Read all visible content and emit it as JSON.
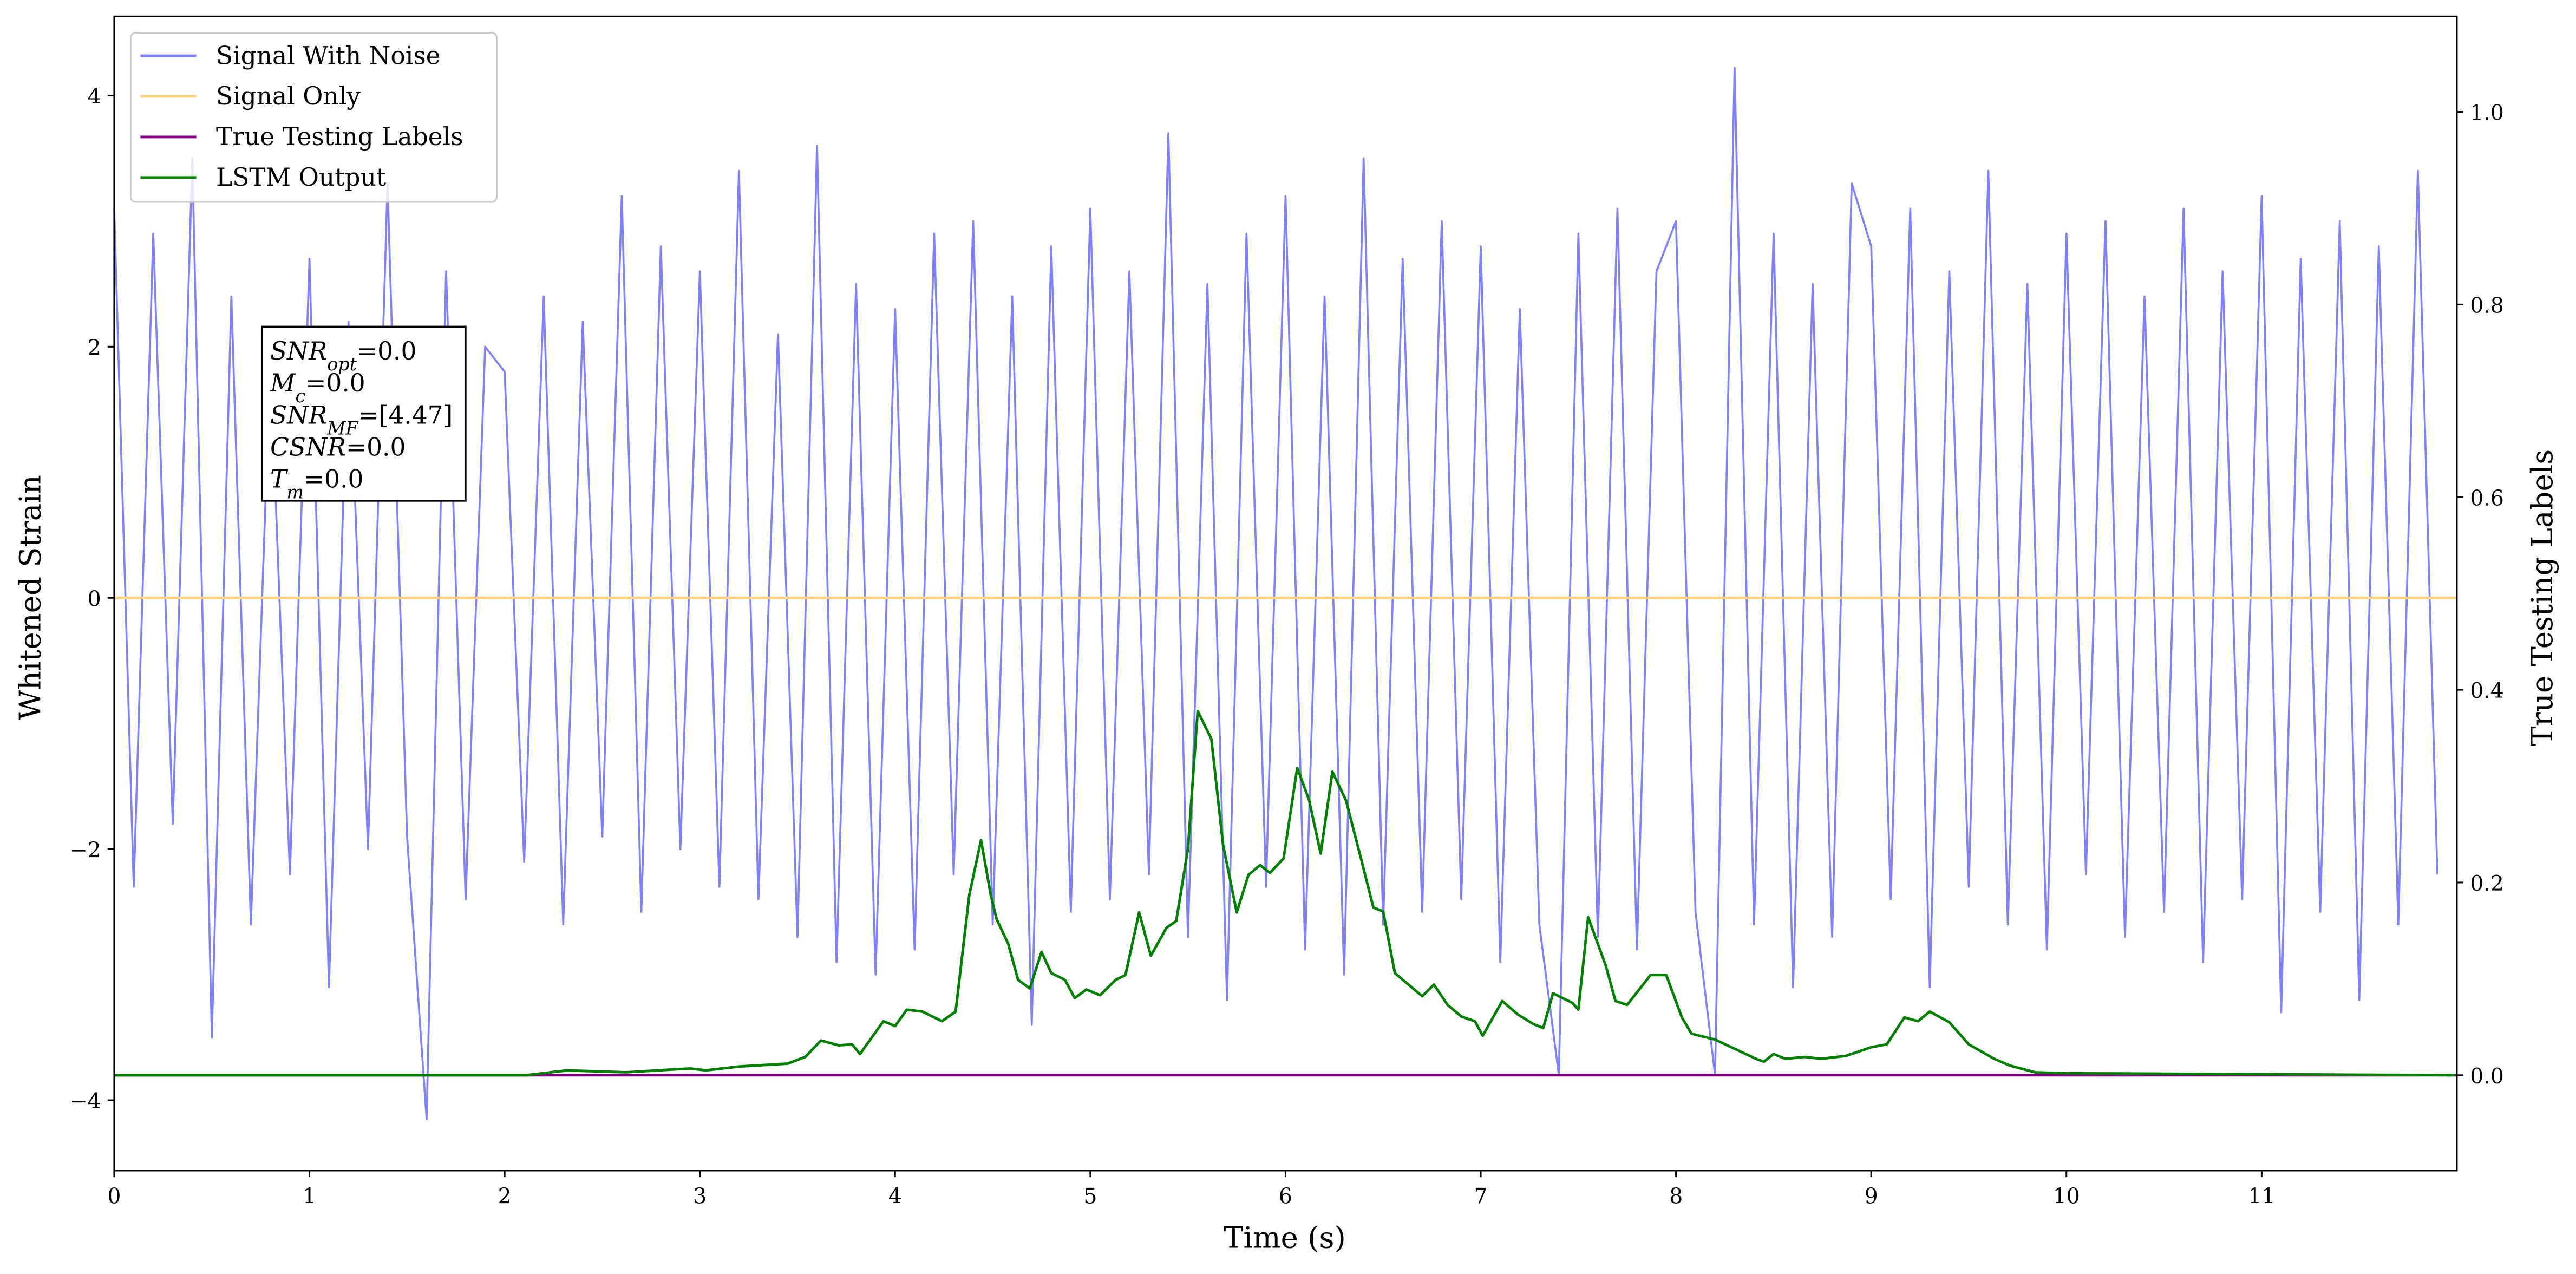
{
  "chart_data": {
    "type": "line",
    "xlabel": "Time (s)",
    "ylabel": "Whitened Strain",
    "y2label": "True Testing Labels",
    "xlim": [
      0,
      12
    ],
    "ylim": [
      -4.56,
      4.63
    ],
    "y2lim": [
      -0.099,
      1.099
    ],
    "xticks": [
      0,
      1,
      2,
      3,
      4,
      5,
      6,
      7,
      8,
      9,
      10,
      11
    ],
    "yticks": [
      {
        "value": -4,
        "label": "−4"
      },
      {
        "value": -2,
        "label": "−2"
      },
      0,
      2,
      4
    ],
    "y2ticks": [
      {
        "value": 0,
        "label": "0.0"
      },
      0.2,
      0.4,
      0.6,
      0.8,
      {
        "value": 1,
        "label": "1.0"
      }
    ],
    "legend": "upper left",
    "annotation": [
      {
        "main": "SNR",
        "sub": "opt",
        "tail": "=0.0"
      },
      {
        "main": "M",
        "sub": "c",
        "tail": "=0.0"
      },
      {
        "main": "SNR",
        "sub": "MF",
        "tail": "=[4.47]"
      },
      {
        "main": "CSNR",
        "sub": null,
        "tail": "=0.0"
      },
      {
        "main": "T",
        "sub": "m",
        "tail": "=0.0"
      }
    ],
    "series": [
      {
        "name": "Signal With Noise",
        "color": "#8080ff",
        "axis": "y",
        "x": [
          0,
          0.1,
          0.2,
          0.3,
          0.4,
          0.5,
          0.6,
          0.7,
          0.8,
          0.9,
          1,
          1.1,
          1.2,
          1.3,
          1.4,
          1.5,
          1.6,
          1.7,
          1.8,
          1.9,
          2,
          2.1,
          2.2,
          2.3,
          2.4,
          2.5,
          2.6,
          2.7,
          2.8,
          2.9,
          3,
          3.1,
          3.2,
          3.3,
          3.4,
          3.5,
          3.6,
          3.7,
          3.8,
          3.9,
          4,
          4.1,
          4.2,
          4.3,
          4.4,
          4.5,
          4.6,
          4.7,
          4.8,
          4.9,
          5,
          5.1,
          5.2,
          5.3,
          5.4,
          5.5,
          5.6,
          5.7,
          5.8,
          5.9,
          6,
          6.1,
          6.2,
          6.3,
          6.4,
          6.5,
          6.6,
          6.7,
          6.8,
          6.9,
          7,
          7.1,
          7.2,
          7.3,
          7.4,
          7.5,
          7.6,
          7.7,
          7.8,
          7.9,
          8,
          8.1,
          8.2,
          8.3,
          8.4,
          8.5,
          8.6,
          8.7,
          8.8,
          8.9,
          9,
          9.1,
          9.2,
          9.3,
          9.4,
          9.5,
          9.6,
          9.7,
          9.8,
          9.9,
          10,
          10.1,
          10.2,
          10.3,
          10.4,
          10.5,
          10.6,
          10.7,
          10.8,
          10.9,
          11,
          11.1,
          11.2,
          11.3,
          11.4,
          11.5,
          11.6,
          11.7,
          11.8,
          11.9
        ],
        "values": [
          3.1,
          -2.3,
          2.9,
          -1.8,
          3.5,
          -3.5,
          2.4,
          -2.6,
          1.9,
          -2.2,
          2.7,
          -3.1,
          2.2,
          -2.0,
          3.3,
          -1.9,
          -4.15,
          2.6,
          -2.4,
          2.0,
          1.8,
          -2.1,
          2.4,
          -2.6,
          2.2,
          -1.9,
          3.2,
          -2.5,
          2.8,
          -2.0,
          2.6,
          -2.3,
          3.4,
          -2.4,
          2.1,
          -2.7,
          3.6,
          -2.9,
          2.5,
          -3.0,
          2.3,
          -2.8,
          2.9,
          -2.2,
          3.0,
          -2.6,
          2.4,
          -3.4,
          2.8,
          -2.5,
          3.1,
          -2.4,
          2.6,
          -2.2,
          3.7,
          -2.7,
          2.5,
          -3.2,
          2.9,
          -2.3,
          3.2,
          -2.8,
          2.4,
          -3.0,
          3.5,
          -2.6,
          2.7,
          -2.5,
          3.0,
          -2.4,
          2.8,
          -2.9,
          2.3,
          -2.6,
          -3.8,
          2.9,
          -2.7,
          3.1,
          -2.8,
          2.6,
          3.0,
          -2.5,
          -3.8,
          4.22,
          -2.6,
          2.9,
          -3.1,
          2.5,
          -2.7,
          3.3,
          2.8,
          -2.4,
          3.1,
          -3.1,
          2.6,
          -2.3,
          3.4,
          -2.6,
          2.5,
          -2.8,
          2.9,
          -2.2,
          3.0,
          -2.7,
          2.4,
          -2.5,
          3.1,
          -2.9,
          2.6,
          -2.4,
          3.2,
          -3.3,
          2.7,
          -2.5,
          3.0,
          -3.2,
          2.8,
          -2.6,
          3.4,
          -2.2
        ]
      },
      {
        "name": "Signal Only",
        "color": "#ffd27f",
        "axis": "y",
        "x": [
          0,
          12
        ],
        "values": [
          0,
          0
        ]
      },
      {
        "name": "True Testing Labels",
        "color": "#800080",
        "axis": "y2",
        "x": [
          0,
          12
        ],
        "values": [
          0,
          0
        ]
      },
      {
        "name": "LSTM Output",
        "color": "#008000",
        "axis": "y2",
        "x": [
          0,
          2.11,
          2.32,
          2.62,
          2.95,
          3.03,
          3.2,
          3.45,
          3.54,
          3.62,
          3.71,
          3.78,
          3.82,
          3.94,
          4.0,
          4.06,
          4.14,
          4.24,
          4.31,
          4.38,
          4.44,
          4.49,
          4.52,
          4.58,
          4.63,
          4.69,
          4.75,
          4.8,
          4.87,
          4.92,
          4.98,
          5.05,
          5.13,
          5.18,
          5.25,
          5.31,
          5.39,
          5.44,
          5.5,
          5.55,
          5.62,
          5.68,
          5.75,
          5.81,
          5.87,
          5.92,
          5.99,
          6.06,
          6.12,
          6.18,
          6.24,
          6.31,
          6.38,
          6.45,
          6.5,
          6.56,
          6.63,
          6.7,
          6.76,
          6.83,
          6.9,
          6.97,
          7.01,
          7.11,
          7.19,
          7.27,
          7.32,
          7.37,
          7.47,
          7.5,
          7.55,
          7.64,
          7.69,
          7.75,
          7.87,
          7.95,
          8.03,
          8.08,
          8.2,
          8.41,
          8.45,
          8.5,
          8.56,
          8.66,
          8.74,
          8.87,
          9.0,
          9.08,
          9.17,
          9.24,
          9.3,
          9.4,
          9.5,
          9.63,
          9.71,
          9.84,
          10.0,
          11.99
        ],
        "values": [
          0,
          0,
          0.005,
          0.003,
          0.007,
          0.005,
          0.009,
          0.012,
          0.019,
          0.036,
          0.031,
          0.032,
          0.022,
          0.056,
          0.051,
          0.068,
          0.066,
          0.056,
          0.066,
          0.187,
          0.244,
          0.187,
          0.162,
          0.136,
          0.099,
          0.09,
          0.128,
          0.106,
          0.099,
          0.08,
          0.089,
          0.083,
          0.099,
          0.104,
          0.169,
          0.124,
          0.153,
          0.16,
          0.235,
          0.378,
          0.349,
          0.239,
          0.169,
          0.208,
          0.218,
          0.21,
          0.225,
          0.319,
          0.286,
          0.23,
          0.315,
          0.285,
          0.23,
          0.174,
          0.17,
          0.106,
          0.094,
          0.082,
          0.094,
          0.073,
          0.061,
          0.056,
          0.041,
          0.077,
          0.063,
          0.053,
          0.049,
          0.085,
          0.075,
          0.068,
          0.164,
          0.114,
          0.077,
          0.073,
          0.104,
          0.104,
          0.06,
          0.043,
          0.037,
          0.017,
          0.014,
          0.022,
          0.017,
          0.019,
          0.017,
          0.02,
          0.029,
          0.032,
          0.06,
          0.056,
          0.066,
          0.055,
          0.032,
          0.017,
          0.01,
          0.003,
          0.002,
          0
        ]
      }
    ]
  }
}
